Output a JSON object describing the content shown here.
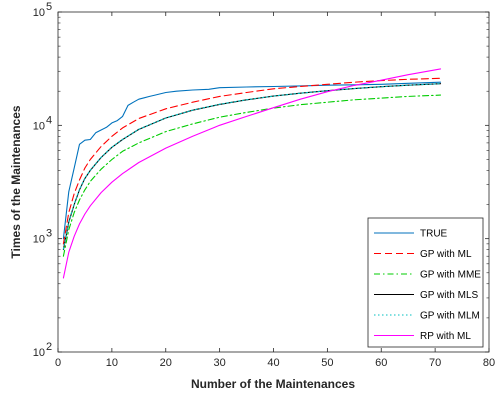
{
  "chart_data": {
    "type": "line",
    "xlabel": "Number of the Maintenances",
    "ylabel": "Times of the Maintenances",
    "xlim": [
      0,
      80
    ],
    "ylim": [
      100,
      100000
    ],
    "y_scale": "log",
    "x_ticks": [
      0,
      10,
      20,
      30,
      40,
      50,
      60,
      70,
      80
    ],
    "x_tick_labels": [
      "0",
      "10",
      "20",
      "30",
      "40",
      "50",
      "60",
      "70",
      "80"
    ],
    "y_ticks": [
      100,
      1000,
      10000,
      100000
    ],
    "y_tick_labels": [
      {
        "base": "10",
        "exp": "2"
      },
      {
        "base": "10",
        "exp": "3"
      },
      {
        "base": "10",
        "exp": "4"
      },
      {
        "base": "10",
        "exp": "5"
      }
    ],
    "grid": false,
    "legend_position": "bottom-right",
    "series": [
      {
        "name": "TRUE",
        "color": "#0072BD",
        "dash": "solid",
        "points": [
          [
            1,
            1000
          ],
          [
            2,
            2600
          ],
          [
            3,
            4200
          ],
          [
            4,
            6800
          ],
          [
            5,
            7400
          ],
          [
            6,
            7500
          ],
          [
            7,
            8600
          ],
          [
            8,
            9100
          ],
          [
            9,
            9600
          ],
          [
            10,
            10500
          ],
          [
            11,
            11000
          ],
          [
            12,
            12000
          ],
          [
            13,
            15000
          ],
          [
            14,
            16000
          ],
          [
            15,
            17000
          ],
          [
            16,
            17500
          ],
          [
            17,
            18000
          ],
          [
            18,
            18500
          ],
          [
            20,
            19500
          ],
          [
            22,
            20000
          ],
          [
            25,
            20500
          ],
          [
            28,
            20800
          ],
          [
            30,
            21500
          ],
          [
            35,
            21800
          ],
          [
            40,
            22000
          ],
          [
            45,
            22300
          ],
          [
            50,
            22600
          ],
          [
            55,
            22800
          ],
          [
            60,
            23000
          ],
          [
            65,
            23500
          ],
          [
            71,
            24000
          ]
        ]
      },
      {
        "name": "GP with ML",
        "color": "#FF0000",
        "dash": "dashed",
        "points": [
          [
            1,
            900
          ],
          [
            2,
            1700
          ],
          [
            3,
            2500
          ],
          [
            4,
            3300
          ],
          [
            5,
            4200
          ],
          [
            6,
            5000
          ],
          [
            8,
            6500
          ],
          [
            10,
            8000
          ],
          [
            12,
            9500
          ],
          [
            15,
            11500
          ],
          [
            20,
            14000
          ],
          [
            25,
            16000
          ],
          [
            30,
            18000
          ],
          [
            35,
            19500
          ],
          [
            40,
            21000
          ],
          [
            45,
            22000
          ],
          [
            50,
            23000
          ],
          [
            55,
            24000
          ],
          [
            60,
            24800
          ],
          [
            65,
            25500
          ],
          [
            71,
            26000
          ]
        ]
      },
      {
        "name": "GP with MME",
        "color": "#00CC00",
        "dash": "dashdot",
        "points": [
          [
            1,
            700
          ],
          [
            2,
            1200
          ],
          [
            3,
            1700
          ],
          [
            4,
            2200
          ],
          [
            5,
            2700
          ],
          [
            6,
            3200
          ],
          [
            8,
            4100
          ],
          [
            10,
            5000
          ],
          [
            12,
            5900
          ],
          [
            15,
            7000
          ],
          [
            20,
            8800
          ],
          [
            25,
            10300
          ],
          [
            30,
            11800
          ],
          [
            35,
            13000
          ],
          [
            40,
            14200
          ],
          [
            45,
            15200
          ],
          [
            50,
            16000
          ],
          [
            55,
            16800
          ],
          [
            60,
            17400
          ],
          [
            65,
            18000
          ],
          [
            71,
            18500
          ]
        ]
      },
      {
        "name": "GP with MLS",
        "color": "#000000",
        "dash": "solid",
        "points": [
          [
            1,
            800
          ],
          [
            2,
            1400
          ],
          [
            3,
            2000
          ],
          [
            4,
            2700
          ],
          [
            5,
            3400
          ],
          [
            6,
            4000
          ],
          [
            8,
            5200
          ],
          [
            10,
            6400
          ],
          [
            12,
            7500
          ],
          [
            15,
            9200
          ],
          [
            20,
            11600
          ],
          [
            25,
            13600
          ],
          [
            30,
            15300
          ],
          [
            35,
            16800
          ],
          [
            40,
            18100
          ],
          [
            45,
            19200
          ],
          [
            50,
            20200
          ],
          [
            55,
            21100
          ],
          [
            60,
            21900
          ],
          [
            65,
            22600
          ],
          [
            71,
            23300
          ]
        ]
      },
      {
        "name": "GP with MLM",
        "color": "#00BFBF",
        "dash": "dotted",
        "points": [
          [
            1,
            810
          ],
          [
            2,
            1420
          ],
          [
            3,
            2020
          ],
          [
            4,
            2720
          ],
          [
            5,
            3420
          ],
          [
            6,
            4020
          ],
          [
            8,
            5220
          ],
          [
            10,
            6420
          ],
          [
            12,
            7520
          ],
          [
            15,
            9220
          ],
          [
            20,
            11620
          ],
          [
            25,
            13620
          ],
          [
            30,
            15320
          ],
          [
            35,
            16820
          ],
          [
            40,
            18120
          ],
          [
            45,
            19220
          ],
          [
            50,
            20220
          ],
          [
            55,
            21120
          ],
          [
            60,
            21920
          ],
          [
            65,
            22620
          ],
          [
            71,
            23320
          ]
        ]
      },
      {
        "name": "RP with ML",
        "color": "#FF00FF",
        "dash": "solid",
        "points": [
          [
            1,
            450
          ],
          [
            2,
            760
          ],
          [
            3,
            1050
          ],
          [
            4,
            1350
          ],
          [
            5,
            1650
          ],
          [
            6,
            1950
          ],
          [
            8,
            2550
          ],
          [
            10,
            3150
          ],
          [
            12,
            3750
          ],
          [
            15,
            4700
          ],
          [
            20,
            6300
          ],
          [
            25,
            8000
          ],
          [
            30,
            10000
          ],
          [
            35,
            12000
          ],
          [
            40,
            14300
          ],
          [
            45,
            17000
          ],
          [
            50,
            19800
          ],
          [
            55,
            22500
          ],
          [
            60,
            25000
          ],
          [
            65,
            28000
          ],
          [
            71,
            31500
          ]
        ]
      }
    ]
  }
}
